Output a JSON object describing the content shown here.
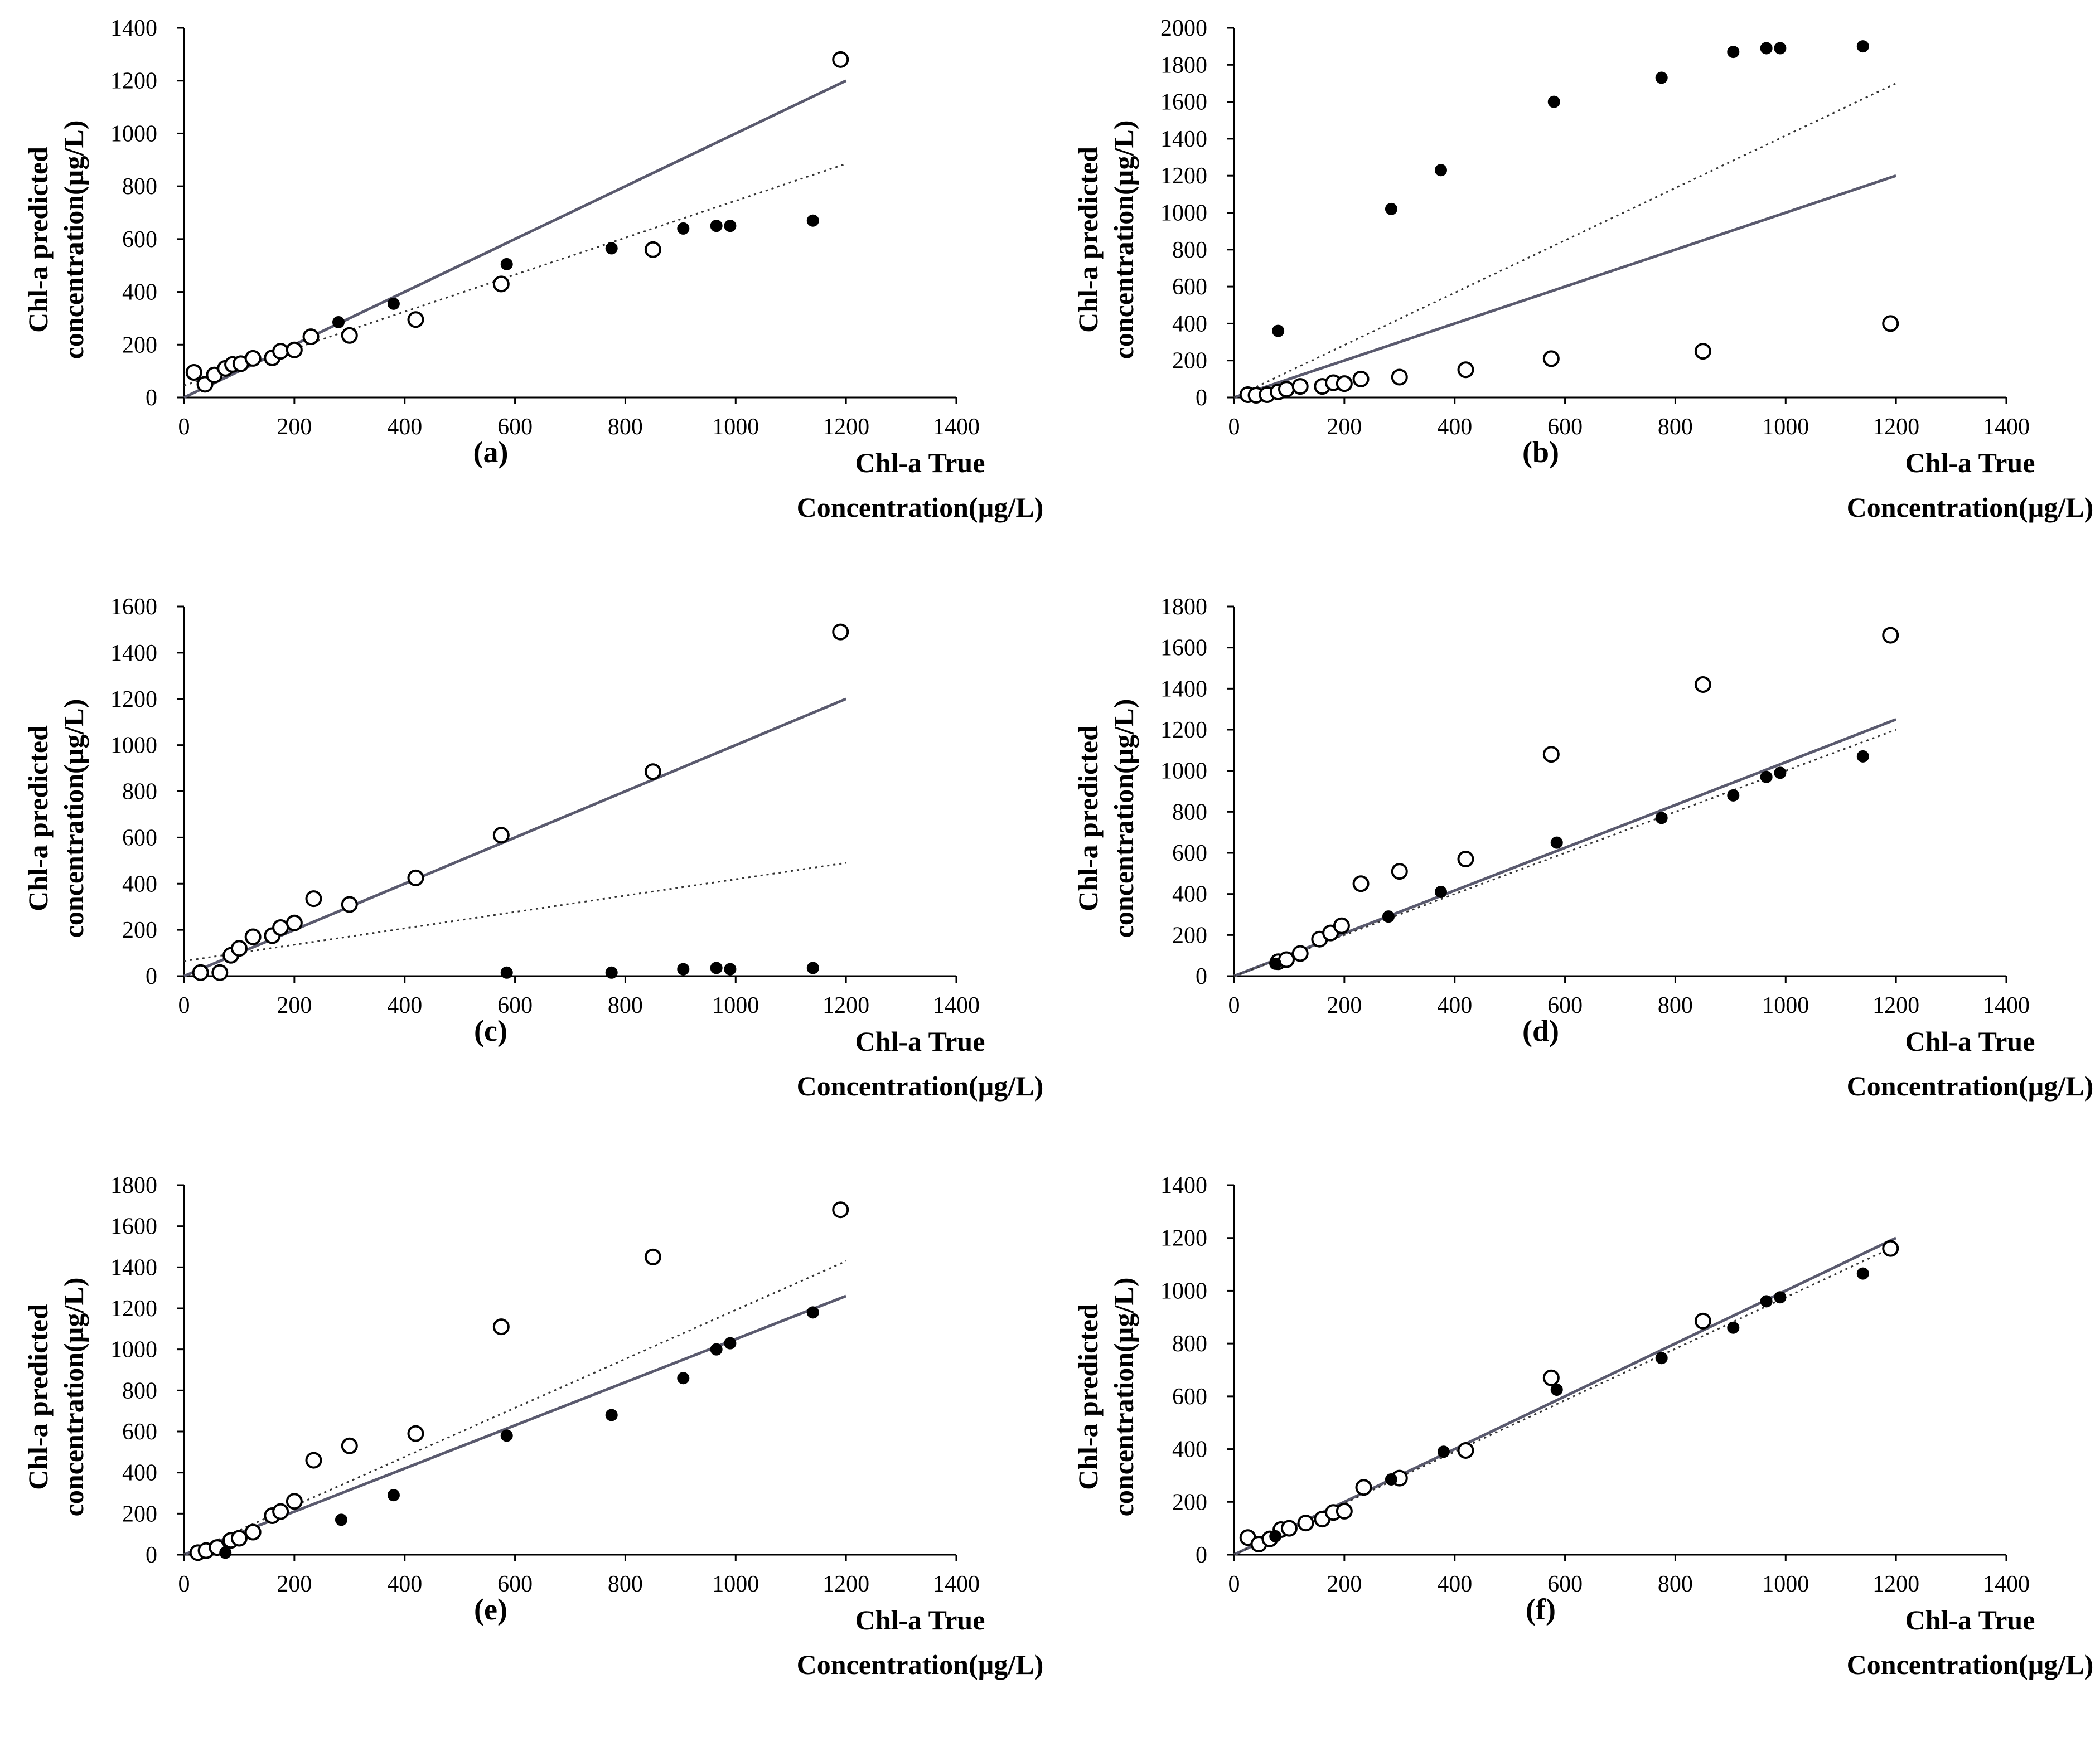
{
  "axis_labels": {
    "y_line1": "Chl-a predicted",
    "y_line2": "concentration(µg/L)",
    "x_line1": "Chl-a True",
    "x_line2": "Concentration(µg/L)"
  },
  "style": {
    "ink": "#000000",
    "one_to_one_line": "#5a5a6e",
    "fit_line": "#333333"
  },
  "chart_data": [
    {
      "panel": "(a)",
      "type": "scatter",
      "xlim": [
        0,
        1400
      ],
      "ylim": [
        0,
        1400
      ],
      "xticks": [
        0,
        200,
        400,
        600,
        800,
        1000,
        1200,
        1400
      ],
      "yticks": [
        0,
        200,
        400,
        600,
        800,
        1000,
        1200,
        1400
      ],
      "series": [
        {
          "marker": "open-circle",
          "points": [
            [
              18,
              95
            ],
            [
              38,
              50
            ],
            [
              55,
              85
            ],
            [
              75,
              110
            ],
            [
              88,
              125
            ],
            [
              103,
              128
            ],
            [
              125,
              148
            ],
            [
              160,
              150
            ],
            [
              175,
              175
            ],
            [
              200,
              180
            ],
            [
              230,
              230
            ],
            [
              300,
              235
            ],
            [
              420,
              295
            ],
            [
              575,
              430
            ],
            [
              850,
              560
            ],
            [
              1190,
              1280
            ]
          ]
        },
        {
          "marker": "filled-circle",
          "points": [
            [
              280,
              285
            ],
            [
              380,
              355
            ],
            [
              585,
              505
            ],
            [
              775,
              565
            ],
            [
              905,
              640
            ],
            [
              965,
              650
            ],
            [
              990,
              650
            ],
            [
              1140,
              670
            ]
          ]
        }
      ],
      "lines": [
        {
          "style": "solid",
          "from": [
            0,
            0
          ],
          "to": [
            1200,
            1200
          ]
        },
        {
          "style": "dotted",
          "from": [
            0,
            45
          ],
          "to": [
            1200,
            885
          ]
        }
      ]
    },
    {
      "panel": "(b)",
      "type": "scatter",
      "xlim": [
        0,
        1400
      ],
      "ylim": [
        0,
        2000
      ],
      "xticks": [
        0,
        200,
        400,
        600,
        800,
        1000,
        1200,
        1400
      ],
      "yticks": [
        0,
        200,
        400,
        600,
        800,
        1000,
        1200,
        1400,
        1600,
        1800,
        2000
      ],
      "series": [
        {
          "marker": "open-circle",
          "points": [
            [
              25,
              15
            ],
            [
              40,
              12
            ],
            [
              60,
              15
            ],
            [
              80,
              30
            ],
            [
              95,
              45
            ],
            [
              120,
              60
            ],
            [
              160,
              60
            ],
            [
              180,
              80
            ],
            [
              200,
              75
            ],
            [
              230,
              100
            ],
            [
              300,
              110
            ],
            [
              420,
              150
            ],
            [
              575,
              210
            ],
            [
              850,
              250
            ],
            [
              1190,
              400
            ]
          ]
        },
        {
          "marker": "filled-circle",
          "points": [
            [
              80,
              360
            ],
            [
              285,
              1020
            ],
            [
              375,
              1230
            ],
            [
              580,
              1600
            ],
            [
              775,
              1730
            ],
            [
              905,
              1870
            ],
            [
              965,
              1890
            ],
            [
              990,
              1890
            ],
            [
              1140,
              1900
            ]
          ]
        }
      ],
      "lines": [
        {
          "style": "solid",
          "from": [
            0,
            0
          ],
          "to": [
            1200,
            1200
          ]
        },
        {
          "style": "dotted",
          "from": [
            0,
            0
          ],
          "to": [
            1200,
            1700
          ]
        }
      ]
    },
    {
      "panel": "(c)",
      "type": "scatter",
      "xlim": [
        0,
        1400
      ],
      "ylim": [
        0,
        1600
      ],
      "xticks": [
        0,
        200,
        400,
        600,
        800,
        1000,
        1200,
        1400
      ],
      "yticks": [
        0,
        200,
        400,
        600,
        800,
        1000,
        1200,
        1400,
        1600
      ],
      "series": [
        {
          "marker": "open-circle",
          "points": [
            [
              30,
              15
            ],
            [
              65,
              15
            ],
            [
              85,
              90
            ],
            [
              100,
              120
            ],
            [
              125,
              170
            ],
            [
              160,
              175
            ],
            [
              175,
              210
            ],
            [
              200,
              230
            ],
            [
              235,
              335
            ],
            [
              300,
              310
            ],
            [
              420,
              425
            ],
            [
              575,
              610
            ],
            [
              850,
              885
            ],
            [
              1190,
              1490
            ]
          ]
        },
        {
          "marker": "filled-circle",
          "points": [
            [
              585,
              15
            ],
            [
              775,
              15
            ],
            [
              905,
              30
            ],
            [
              965,
              35
            ],
            [
              990,
              30
            ],
            [
              1140,
              35
            ]
          ]
        }
      ],
      "lines": [
        {
          "style": "solid",
          "from": [
            0,
            0
          ],
          "to": [
            1200,
            1200
          ]
        },
        {
          "style": "dotted",
          "from": [
            0,
            65
          ],
          "to": [
            1200,
            490
          ]
        }
      ]
    },
    {
      "panel": "(d)",
      "type": "scatter",
      "xlim": [
        0,
        1400
      ],
      "ylim": [
        0,
        1800
      ],
      "xticks": [
        0,
        200,
        400,
        600,
        800,
        1000,
        1200,
        1400
      ],
      "yticks": [
        0,
        200,
        400,
        600,
        800,
        1000,
        1200,
        1400,
        1600,
        1800
      ],
      "series": [
        {
          "marker": "open-circle",
          "points": [
            [
              80,
              70
            ],
            [
              95,
              80
            ],
            [
              120,
              110
            ],
            [
              155,
              180
            ],
            [
              175,
              210
            ],
            [
              195,
              245
            ],
            [
              230,
              450
            ],
            [
              300,
              510
            ],
            [
              420,
              570
            ],
            [
              575,
              1080
            ],
            [
              850,
              1420
            ],
            [
              1190,
              1660
            ]
          ]
        },
        {
          "marker": "filled-circle",
          "points": [
            [
              75,
              60
            ],
            [
              280,
              290
            ],
            [
              375,
              410
            ],
            [
              585,
              650
            ],
            [
              775,
              770
            ],
            [
              905,
              880
            ],
            [
              965,
              970
            ],
            [
              990,
              990
            ],
            [
              1140,
              1070
            ]
          ]
        }
      ],
      "lines": [
        {
          "style": "solid",
          "from": [
            0,
            0
          ],
          "to": [
            1200,
            1250
          ]
        },
        {
          "style": "dotted",
          "from": [
            0,
            0
          ],
          "to": [
            1200,
            1200
          ]
        }
      ]
    },
    {
      "panel": "(e)",
      "type": "scatter",
      "xlim": [
        0,
        1400
      ],
      "ylim": [
        0,
        1800
      ],
      "xticks": [
        0,
        200,
        400,
        600,
        800,
        1000,
        1200,
        1400
      ],
      "yticks": [
        0,
        200,
        400,
        600,
        800,
        1000,
        1200,
        1400,
        1600,
        1800
      ],
      "series": [
        {
          "marker": "open-circle",
          "points": [
            [
              25,
              10
            ],
            [
              40,
              20
            ],
            [
              60,
              35
            ],
            [
              85,
              70
            ],
            [
              100,
              80
            ],
            [
              125,
              110
            ],
            [
              160,
              190
            ],
            [
              175,
              210
            ],
            [
              200,
              260
            ],
            [
              235,
              460
            ],
            [
              300,
              530
            ],
            [
              420,
              590
            ],
            [
              575,
              1110
            ],
            [
              850,
              1450
            ],
            [
              1190,
              1680
            ]
          ]
        },
        {
          "marker": "filled-circle",
          "points": [
            [
              75,
              10
            ],
            [
              285,
              170
            ],
            [
              380,
              290
            ],
            [
              585,
              580
            ],
            [
              775,
              680
            ],
            [
              905,
              860
            ],
            [
              965,
              1000
            ],
            [
              990,
              1030
            ],
            [
              1140,
              1180
            ]
          ]
        }
      ],
      "lines": [
        {
          "style": "solid",
          "from": [
            0,
            0
          ],
          "to": [
            1200,
            1260
          ]
        },
        {
          "style": "dotted",
          "from": [
            0,
            0
          ],
          "to": [
            1200,
            1430
          ]
        }
      ]
    },
    {
      "panel": "(f)",
      "type": "scatter",
      "xlim": [
        0,
        1400
      ],
      "ylim": [
        0,
        1400
      ],
      "xticks": [
        0,
        200,
        400,
        600,
        800,
        1000,
        1200,
        1400
      ],
      "yticks": [
        0,
        200,
        400,
        600,
        800,
        1000,
        1200,
        1400
      ],
      "series": [
        {
          "marker": "open-circle",
          "points": [
            [
              25,
              65
            ],
            [
              45,
              40
            ],
            [
              65,
              60
            ],
            [
              85,
              95
            ],
            [
              100,
              100
            ],
            [
              130,
              120
            ],
            [
              160,
              135
            ],
            [
              180,
              160
            ],
            [
              200,
              165
            ],
            [
              235,
              255
            ],
            [
              300,
              290
            ],
            [
              420,
              395
            ],
            [
              575,
              670
            ],
            [
              850,
              885
            ],
            [
              1190,
              1160
            ]
          ]
        },
        {
          "marker": "filled-circle",
          "points": [
            [
              75,
              70
            ],
            [
              285,
              285
            ],
            [
              380,
              390
            ],
            [
              585,
              625
            ],
            [
              775,
              745
            ],
            [
              905,
              860
            ],
            [
              965,
              960
            ],
            [
              990,
              975
            ],
            [
              1140,
              1065
            ]
          ]
        }
      ],
      "lines": [
        {
          "style": "solid",
          "from": [
            0,
            0
          ],
          "to": [
            1200,
            1200
          ]
        },
        {
          "style": "dotted",
          "from": [
            0,
            0
          ],
          "to": [
            1200,
            1170
          ]
        }
      ]
    }
  ]
}
